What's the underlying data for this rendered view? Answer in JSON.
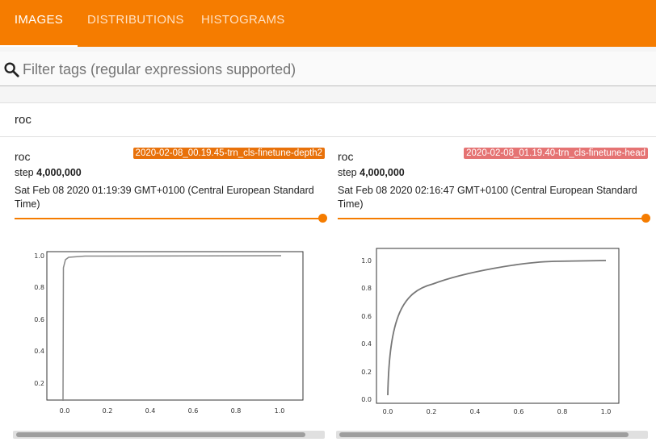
{
  "tabs": [
    {
      "label": "IMAGES",
      "active": true
    },
    {
      "label": "DISTRIBUTIONS",
      "active": false
    },
    {
      "label": "HISTOGRAMS",
      "active": false
    }
  ],
  "filter": {
    "placeholder": "Filter tags (regular expressions supported)"
  },
  "group": {
    "title": "roc"
  },
  "cards": [
    {
      "tag": "roc",
      "run": "2020-02-08_00.19.45-trn_cls-finetune-depth2",
      "run_color": "#e8710a",
      "step_label": "step",
      "step_value": "4,000,000",
      "timestamp": "Sat Feb 08 2020 01:19:39 GMT+0100 (Central European Standard Time)",
      "plot": {
        "x_ticks": [
          "0.0",
          "0.2",
          "0.4",
          "0.6",
          "0.8",
          "1.0"
        ],
        "y_ticks": [
          "1.0",
          "0.8",
          "0.6",
          "0.4",
          "0.2"
        ]
      }
    },
    {
      "tag": "roc",
      "run": "2020-02-08_01.19.40-trn_cls-finetune-head",
      "run_color": "#e57373",
      "step_label": "step",
      "step_value": "4,000,000",
      "timestamp": "Sat Feb 08 2020 02:16:47 GMT+0100 (Central European Standard Time)",
      "plot": {
        "x_ticks": [
          "0.0",
          "0.2",
          "0.4",
          "0.6",
          "0.8",
          "1.0"
        ],
        "y_ticks": [
          "1.0",
          "0.8",
          "0.6",
          "0.4",
          "0.2",
          "0.0"
        ]
      }
    }
  ]
}
